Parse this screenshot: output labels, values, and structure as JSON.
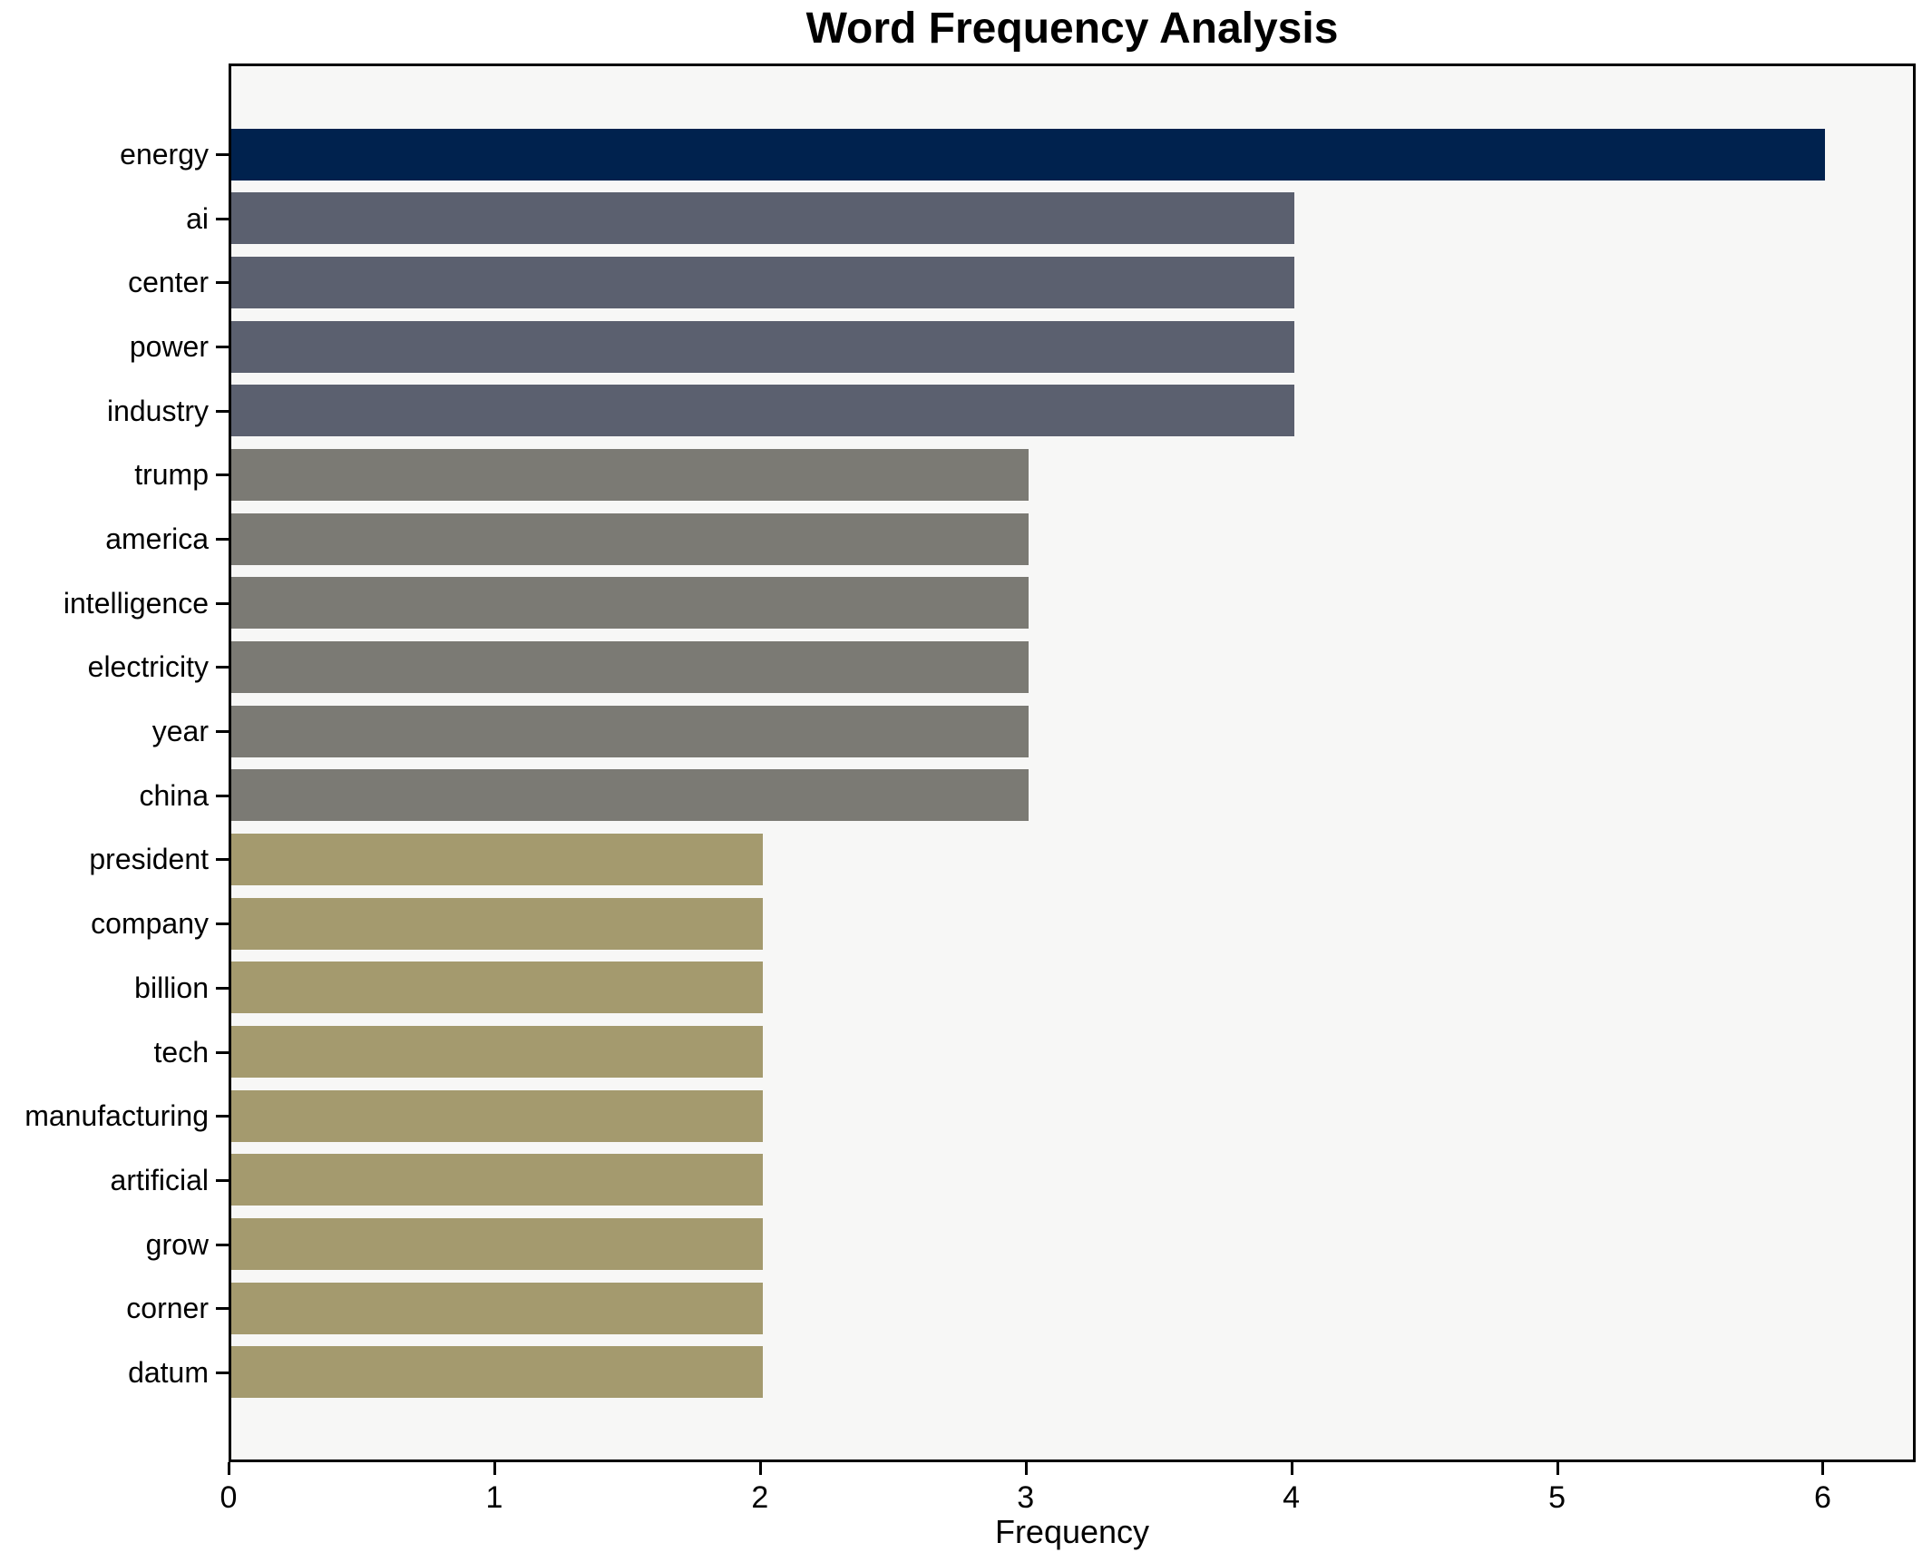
{
  "chart_data": {
    "type": "bar",
    "orientation": "horizontal",
    "title": "Word Frequency Analysis",
    "xlabel": "Frequency",
    "ylabel": "",
    "categories": [
      "energy",
      "ai",
      "center",
      "power",
      "industry",
      "trump",
      "america",
      "intelligence",
      "electricity",
      "year",
      "china",
      "president",
      "company",
      "billion",
      "tech",
      "manufacturing",
      "artificial",
      "grow",
      "corner",
      "datum"
    ],
    "values": [
      6,
      4,
      4,
      4,
      4,
      3,
      3,
      3,
      3,
      3,
      3,
      2,
      2,
      2,
      2,
      2,
      2,
      2,
      2,
      2
    ],
    "bar_colors": [
      "#00224e",
      "#5b606f",
      "#5b606f",
      "#5b606f",
      "#5b606f",
      "#7b7a74",
      "#7b7a74",
      "#7b7a74",
      "#7b7a74",
      "#7b7a74",
      "#7b7a74",
      "#a49a6e",
      "#a49a6e",
      "#a49a6e",
      "#a49a6e",
      "#a49a6e",
      "#a49a6e",
      "#a49a6e",
      "#a49a6e",
      "#a49a6e"
    ],
    "value_color_map": {
      "6": "#00224e",
      "4": "#5b606f",
      "3": "#7b7a74",
      "2": "#a49a6e"
    },
    "xticks": [
      0,
      1,
      2,
      3,
      4,
      5,
      6
    ],
    "xlim": [
      0,
      6.35
    ],
    "grid": false,
    "legend": null,
    "plot_background": "#f7f7f6",
    "spine_color": "#000000"
  }
}
